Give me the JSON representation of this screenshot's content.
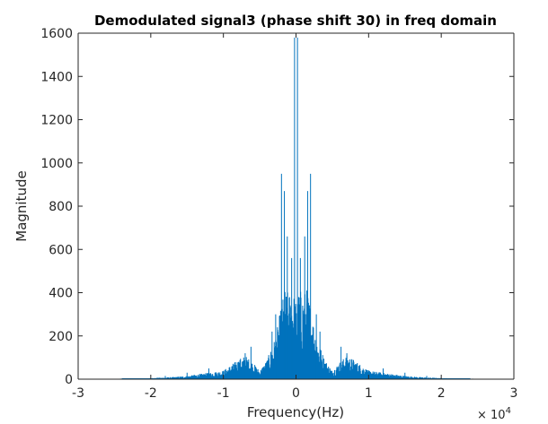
{
  "chart_data": {
    "type": "line",
    "title": "Demodulated signal3 (phase shift 30) in freq domain",
    "xlabel": "Frequency(Hz)",
    "ylabel": "Magnitude",
    "x_exponent_label": "× 10",
    "x_exponent_power": "4",
    "xlim": [
      -30000,
      30000
    ],
    "ylim": [
      0,
      1600
    ],
    "x_ticks": [
      -30000,
      -20000,
      -10000,
      0,
      10000,
      20000,
      30000
    ],
    "x_tick_labels": [
      "-3",
      "-2",
      "-1",
      "0",
      "1",
      "2",
      "3"
    ],
    "y_ticks": [
      0,
      200,
      400,
      600,
      800,
      1000,
      1200,
      1400,
      1600
    ],
    "y_tick_labels": [
      "0",
      "200",
      "400",
      "600",
      "800",
      "1000",
      "1200",
      "1400",
      "1600"
    ],
    "series_color": "#0072BD",
    "peaks": [
      {
        "x": -200,
        "y": 1580
      },
      {
        "x": 200,
        "y": 1580
      },
      {
        "x": -2000,
        "y": 950
      },
      {
        "x": 2000,
        "y": 950
      },
      {
        "x": -1600,
        "y": 870
      },
      {
        "x": 1600,
        "y": 870
      },
      {
        "x": -1200,
        "y": 660
      },
      {
        "x": 1200,
        "y": 660
      },
      {
        "x": -600,
        "y": 560
      },
      {
        "x": 600,
        "y": 560
      },
      {
        "x": -2800,
        "y": 300
      },
      {
        "x": 2800,
        "y": 300
      },
      {
        "x": -3300,
        "y": 220
      },
      {
        "x": 3300,
        "y": 220
      },
      {
        "x": -6200,
        "y": 150
      },
      {
        "x": 6200,
        "y": 150
      },
      {
        "x": -7000,
        "y": 120
      },
      {
        "x": 7000,
        "y": 120
      },
      {
        "x": -12000,
        "y": 50
      },
      {
        "x": 12000,
        "y": 50
      },
      {
        "x": -15000,
        "y": 30
      },
      {
        "x": 15000,
        "y": 30
      },
      {
        "x": -18000,
        "y": 15
      },
      {
        "x": 18000,
        "y": 15
      }
    ],
    "envelope": [
      {
        "x": -30000,
        "y": 0
      },
      {
        "x": -26000,
        "y": 0
      },
      {
        "x": -24000,
        "y": 3
      },
      {
        "x": -20000,
        "y": 5
      },
      {
        "x": -17000,
        "y": 10
      },
      {
        "x": -15000,
        "y": 15
      },
      {
        "x": -12000,
        "y": 30
      },
      {
        "x": -10000,
        "y": 40
      },
      {
        "x": -8000,
        "y": 90
      },
      {
        "x": -7000,
        "y": 110
      },
      {
        "x": -6000,
        "y": 80
      },
      {
        "x": -5000,
        "y": 40
      },
      {
        "x": -4000,
        "y": 90
      },
      {
        "x": -3000,
        "y": 180
      },
      {
        "x": -2500,
        "y": 250
      },
      {
        "x": -2000,
        "y": 350
      },
      {
        "x": -1500,
        "y": 420
      },
      {
        "x": -1000,
        "y": 400
      },
      {
        "x": -500,
        "y": 420
      },
      {
        "x": 0,
        "y": 360
      },
      {
        "x": 500,
        "y": 420
      },
      {
        "x": 1000,
        "y": 400
      },
      {
        "x": 1500,
        "y": 420
      },
      {
        "x": 2000,
        "y": 350
      },
      {
        "x": 2500,
        "y": 250
      },
      {
        "x": 3000,
        "y": 180
      },
      {
        "x": 4000,
        "y": 90
      },
      {
        "x": 5000,
        "y": 40
      },
      {
        "x": 6000,
        "y": 80
      },
      {
        "x": 7000,
        "y": 110
      },
      {
        "x": 8000,
        "y": 90
      },
      {
        "x": 10000,
        "y": 40
      },
      {
        "x": 12000,
        "y": 30
      },
      {
        "x": 15000,
        "y": 15
      },
      {
        "x": 17000,
        "y": 10
      },
      {
        "x": 20000,
        "y": 5
      },
      {
        "x": 24000,
        "y": 3
      },
      {
        "x": 26000,
        "y": 0
      },
      {
        "x": 30000,
        "y": 0
      }
    ],
    "grid": false,
    "legend": "none"
  }
}
